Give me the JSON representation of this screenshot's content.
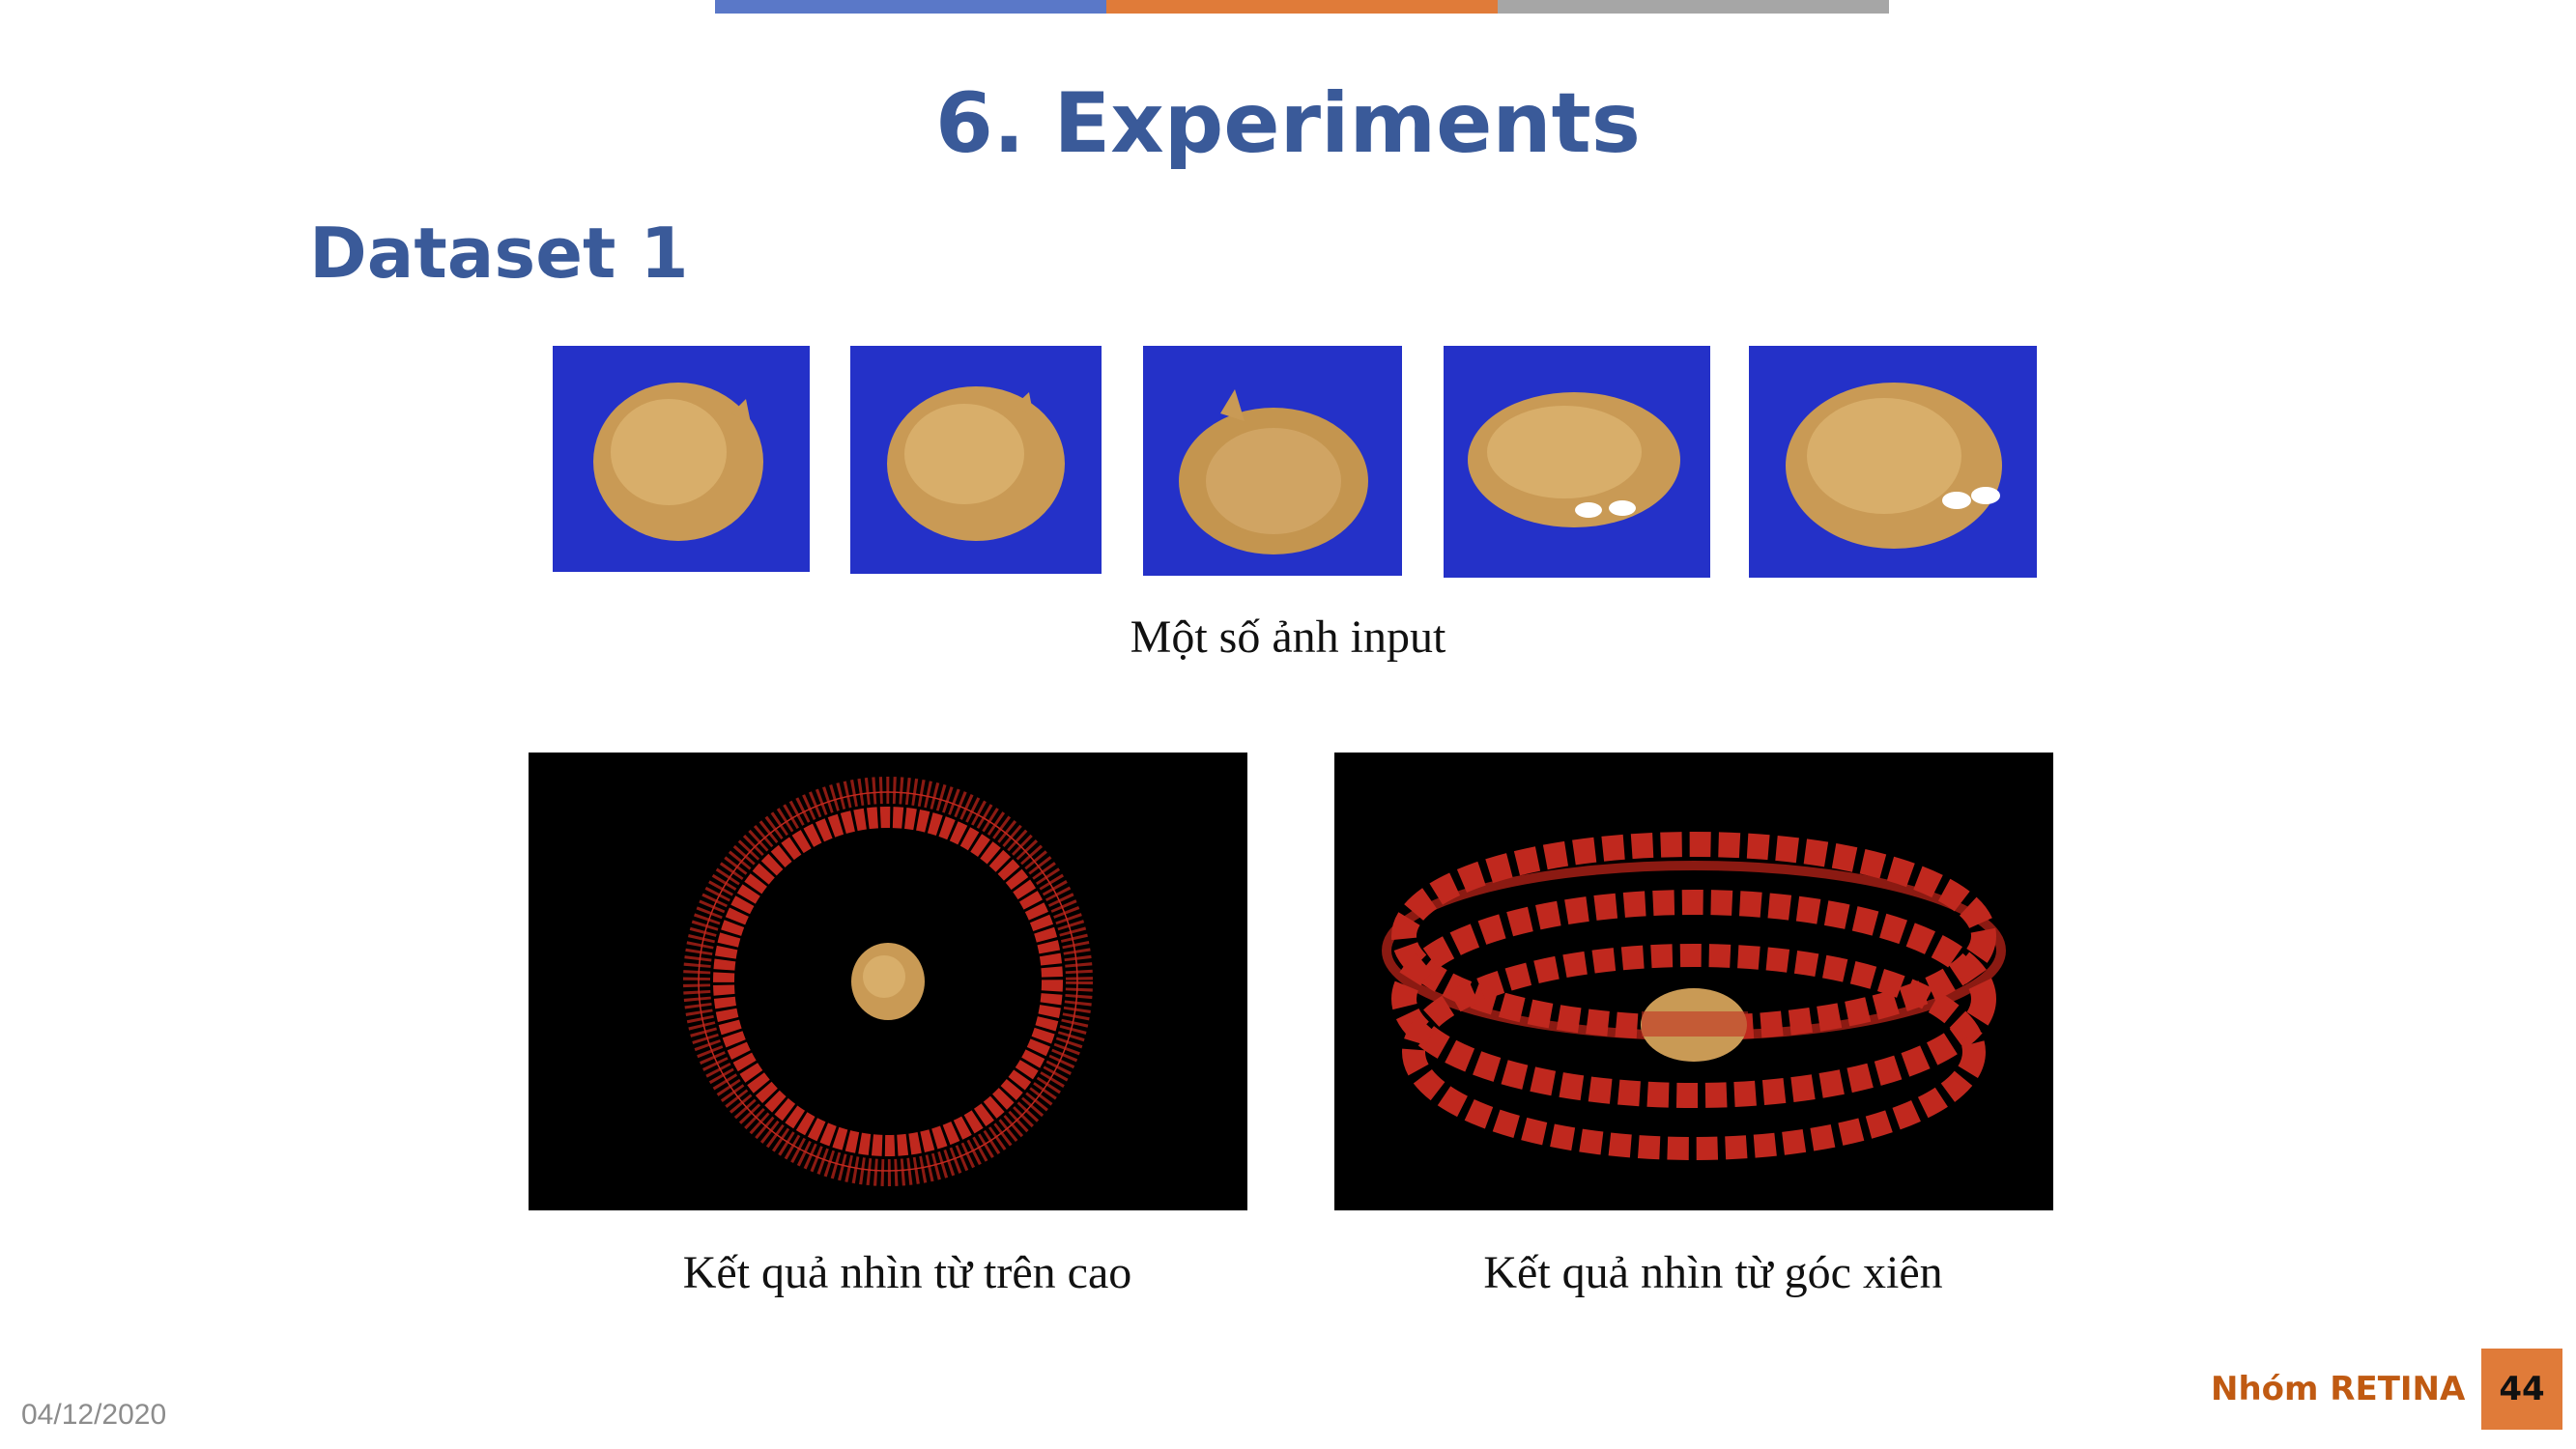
{
  "slide": {
    "title": "6. Experiments",
    "subtitle": "Dataset 1",
    "input_caption": "Một số ảnh input",
    "result_caption_top": "Kết quả nhìn từ trên cao",
    "result_caption_oblique": "Kết quả nhìn từ góc xiên"
  },
  "footer": {
    "date": "04/12/2020",
    "group": "Nhóm RETINA",
    "page": "44"
  },
  "colors": {
    "title": "#3A5A99",
    "accent_blue": "#5A78C8",
    "accent_orange": "#E07B39",
    "accent_gray": "#A6A6A6",
    "photo_background": "#2431C8",
    "camera_red": "#C0281E"
  }
}
